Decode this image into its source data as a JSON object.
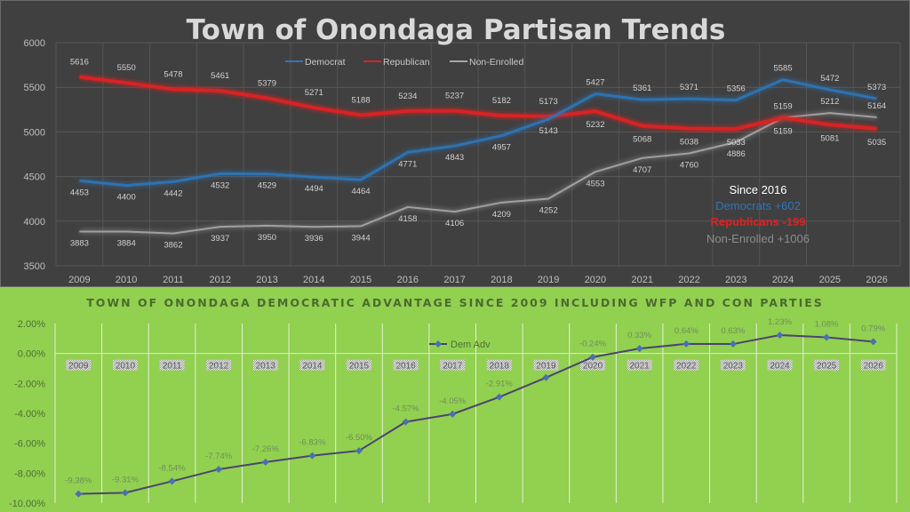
{
  "chart_data": [
    {
      "type": "line",
      "title": "Town of Onondaga Partisan Trends",
      "xlabel": "",
      "ylabel": "",
      "x": [
        "2009",
        "2010",
        "2011",
        "2012",
        "2013",
        "2014",
        "2015",
        "2016",
        "2017",
        "2018",
        "2019",
        "2020",
        "2021",
        "2022",
        "2023",
        "2024",
        "2025",
        "2026"
      ],
      "ylim": [
        3500,
        6000
      ],
      "yticks": [
        "3500",
        "4000",
        "4500",
        "5000",
        "5500",
        "6000"
      ],
      "grid": true,
      "legend_position": "top-center",
      "series": [
        {
          "name": "Democrat",
          "color": "#2e75b6",
          "values": [
            4453,
            4400,
            4442,
            4532,
            4529,
            4494,
            4464,
            4771,
            4843,
            4957,
            5143,
            5427,
            5361,
            5371,
            5356,
            5585,
            5472,
            5373
          ]
        },
        {
          "name": "Republican",
          "color": "#e02020",
          "values": [
            5616,
            5550,
            5478,
            5461,
            5379,
            5271,
            5188,
            5234,
            5237,
            5182,
            5173,
            5232,
            5068,
            5038,
            5033,
            5159,
            5081,
            5035
          ]
        },
        {
          "name": "Non-Enrolled",
          "color": "#a6a6a6",
          "values": [
            3883,
            3884,
            3862,
            3937,
            3950,
            3936,
            3944,
            4158,
            4106,
            4209,
            4252,
            4553,
            4707,
            4760,
            4886,
            5159,
            5212,
            5164
          ]
        }
      ],
      "annotation": {
        "heading": "Since 2016",
        "lines": [
          {
            "text": "Democrats +602",
            "color": "#2e75b6"
          },
          {
            "text": "Republicans -199",
            "color": "#e02020"
          },
          {
            "text": "Non-Enrolled +1006",
            "color": "#8c8c8c"
          }
        ]
      }
    },
    {
      "type": "line",
      "title": "TOWN OF ONONDAGA DEMOCRATIC ADVANTAGE SINCE 2009 INCLUDING WFP AND CON PARTIES",
      "xlabel": "",
      "ylabel": "",
      "x": [
        "2009",
        "2010",
        "2011",
        "2012",
        "2013",
        "2014",
        "2015",
        "2016",
        "2017",
        "2018",
        "2019",
        "2020",
        "2021",
        "2022",
        "2023",
        "2024",
        "2025",
        "2026"
      ],
      "ylim": [
        -10,
        2
      ],
      "yticks": [
        "-10.00%",
        "-8.00%",
        "-6.00%",
        "-4.00%",
        "-2.00%",
        "0.00%",
        "2.00%"
      ],
      "grid": true,
      "legend_position": "top-center",
      "series": [
        {
          "name": "Dem Adv",
          "color": "#4b4470",
          "marker_color": "#4a6fb5",
          "values": [
            -9.38,
            -9.31,
            -8.54,
            -7.74,
            -7.26,
            -6.83,
            -6.5,
            -4.57,
            -4.05,
            -2.91,
            -1.61,
            -0.24,
            0.33,
            0.64,
            0.63,
            1.23,
            1.08,
            0.79
          ],
          "labels": [
            "-9.38%",
            "-9.31%",
            "-8.54%",
            "-7.74%",
            "-7.26%",
            "-6.83%",
            "-6.50%",
            "-4.57%",
            "-4.05%",
            "-2.91%",
            "",
            "-0.24%",
            "0.33%",
            "0.64%",
            "0.63%",
            "1.23%",
            "1.08%",
            "0.79%"
          ]
        }
      ]
    }
  ]
}
